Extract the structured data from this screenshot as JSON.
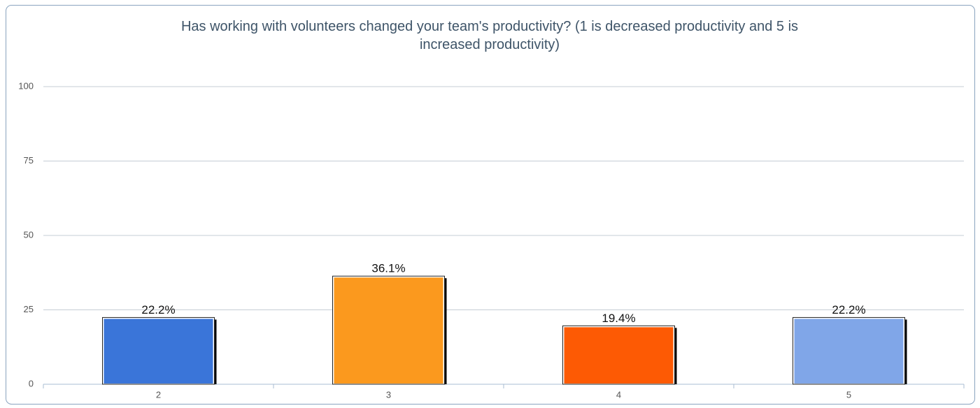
{
  "chart_data": {
    "type": "bar",
    "title": "Has working with volunteers changed your team's productivity? (1 is decreased productivity and 5 is increased productivity)",
    "categories": [
      "2",
      "3",
      "4",
      "5"
    ],
    "values": [
      22.2,
      36.1,
      19.4,
      22.2
    ],
    "value_labels": [
      "22.2%",
      "36.1%",
      "19.4%",
      "22.2%"
    ],
    "colors": [
      "#3a75d9",
      "#fb991e",
      "#fd5a04",
      "#80a6e8"
    ],
    "ylim": [
      0,
      100
    ],
    "yticks": [
      0,
      25,
      50,
      75,
      100
    ],
    "grid": true
  }
}
